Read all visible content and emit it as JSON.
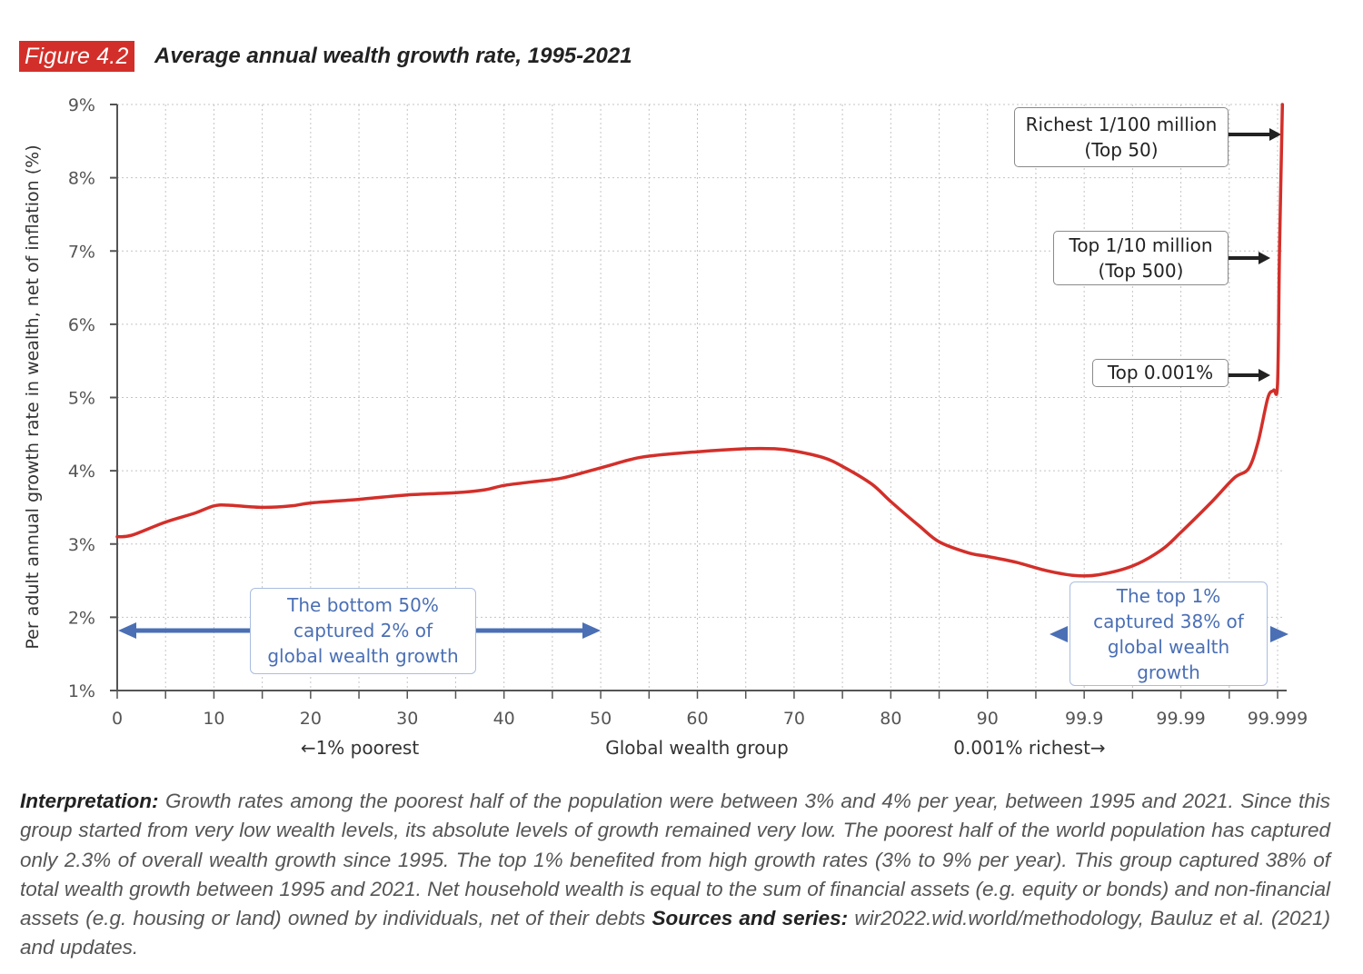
{
  "figure": {
    "badge": "Figure 4.2",
    "title": "Average annual wealth growth rate, 1995-2021"
  },
  "chart_data": {
    "type": "line",
    "title": "Average annual wealth growth rate, 1995-2021",
    "xlabel": "Global wealth group",
    "ylabel": "Per adult annual growth rate in wealth, net of inflation (%)",
    "x_sublabels": {
      "left": "←1% poorest",
      "right": "0.001% richest→"
    },
    "x_tick_labels": [
      "0",
      "10",
      "20",
      "30",
      "40",
      "50",
      "60",
      "70",
      "80",
      "90",
      "99.9",
      "99.99",
      "99.999"
    ],
    "y_tick_labels": [
      "1%",
      "2%",
      "3%",
      "4%",
      "5%",
      "6%",
      "7%",
      "8%",
      "9%"
    ],
    "ylim": [
      1,
      9
    ],
    "x_scale_note": "x positions are tick-label indices (0 = '0', 12 = '99.999'); non-linear scale at the top end",
    "grid": true,
    "series": [
      {
        "name": "Average annual wealth growth rate",
        "color": "#d32f2a",
        "points": [
          [
            0.0,
            3.1
          ],
          [
            0.15,
            3.12
          ],
          [
            0.5,
            3.3
          ],
          [
            0.8,
            3.42
          ],
          [
            1.0,
            3.52
          ],
          [
            1.15,
            3.53
          ],
          [
            1.5,
            3.5
          ],
          [
            1.8,
            3.52
          ],
          [
            2.0,
            3.56
          ],
          [
            2.5,
            3.61
          ],
          [
            3.0,
            3.67
          ],
          [
            3.5,
            3.7
          ],
          [
            3.8,
            3.74
          ],
          [
            4.0,
            3.8
          ],
          [
            4.3,
            3.85
          ],
          [
            4.6,
            3.9
          ],
          [
            5.0,
            4.04
          ],
          [
            5.3,
            4.15
          ],
          [
            5.5,
            4.2
          ],
          [
            6.0,
            4.26
          ],
          [
            6.5,
            4.3
          ],
          [
            6.8,
            4.3
          ],
          [
            7.0,
            4.27
          ],
          [
            7.3,
            4.18
          ],
          [
            7.5,
            4.06
          ],
          [
            7.8,
            3.82
          ],
          [
            8.0,
            3.58
          ],
          [
            8.3,
            3.24
          ],
          [
            8.5,
            3.03
          ],
          [
            8.8,
            2.88
          ],
          [
            9.0,
            2.83
          ],
          [
            9.3,
            2.75
          ],
          [
            9.6,
            2.64
          ],
          [
            9.9,
            2.57
          ],
          [
            10.15,
            2.58
          ],
          [
            10.5,
            2.7
          ],
          [
            10.8,
            2.92
          ],
          [
            11.0,
            3.16
          ],
          [
            11.3,
            3.55
          ],
          [
            11.55,
            3.9
          ],
          [
            11.7,
            4.03
          ],
          [
            11.8,
            4.4
          ],
          [
            11.9,
            5.0
          ],
          [
            11.96,
            5.1
          ],
          [
            12.0,
            5.2
          ],
          [
            12.02,
            7.0
          ],
          [
            12.05,
            9.0
          ]
        ]
      }
    ],
    "annotations": [
      {
        "id": "top50",
        "lines": [
          "Richest 1/100 million",
          "(Top 50)"
        ],
        "y": 8.6,
        "color": "#222222"
      },
      {
        "id": "top500",
        "lines": [
          "Top 1/10 million",
          "(Top 500)"
        ],
        "y": 6.9,
        "color": "#222222"
      },
      {
        "id": "top0001",
        "lines": [
          "Top 0.001%"
        ],
        "y": 5.3,
        "color": "#222222"
      },
      {
        "id": "bottom50",
        "lines": [
          "The bottom 50%",
          "captured 2% of",
          "global wealth growth"
        ],
        "x_range": [
          0,
          5
        ],
        "color": "#4a6fb5"
      },
      {
        "id": "top1",
        "lines": [
          "The top 1%",
          "captured 38% of",
          "global wealth",
          "growth"
        ],
        "x_range": [
          9.7,
          12.0
        ],
        "color": "#4a6fb5"
      }
    ]
  },
  "interpretation": {
    "lead": "Interpretation:",
    "body": " Growth rates among the poorest half of the population were between 3% and 4% per year, between 1995 and 2021. Since this group started from very low wealth levels, its absolute levels of growth remained very low. The poorest half of the world population has captured only 2.3% of overall wealth growth since 1995. The top 1% benefited from high growth rates (3% to 9% per year). This group captured 38% of total wealth growth between 1995 and 2021. Net household wealth is equal to the sum of financial assets (e.g. equity or bonds) and non-financial assets (e.g. housing or land) owned by individuals, net of their debts ",
    "sources_lead": "Sources and series:",
    "sources_body": " wir2022.wid.world/methodology, Bauluz et al. (2021) and updates."
  }
}
